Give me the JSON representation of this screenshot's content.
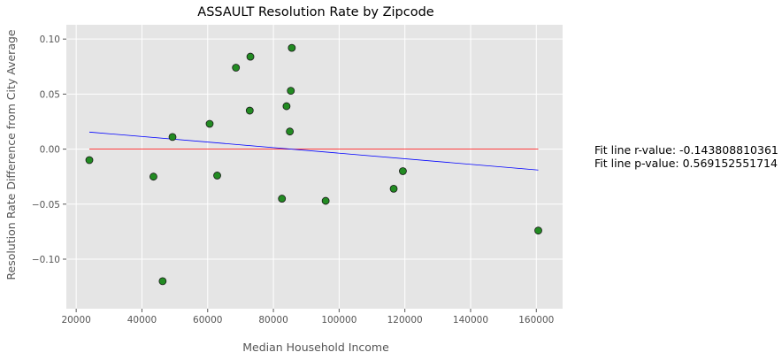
{
  "chart_data": {
    "type": "scatter",
    "title": "ASSAULT Resolution Rate by Zipcode",
    "xlabel": "Median Household Income",
    "ylabel": "Resolution Rate Difference from City Average",
    "xlim": [
      17000,
      168000
    ],
    "ylim": [
      -0.145,
      0.113
    ],
    "xticks": [
      20000,
      40000,
      60000,
      80000,
      100000,
      120000,
      140000,
      160000
    ],
    "yticks": [
      -0.1,
      -0.05,
      0.0,
      0.05,
      0.1
    ],
    "xtick_labels": [
      "20000",
      "40000",
      "60000",
      "80000",
      "100000",
      "120000",
      "140000",
      "160000"
    ],
    "ytick_labels": [
      "−0.10",
      "−0.05",
      "0.00",
      "0.05",
      "0.10"
    ],
    "grid": true,
    "points": [
      {
        "x": 24000,
        "y": -0.01
      },
      {
        "x": 43500,
        "y": -0.025
      },
      {
        "x": 46300,
        "y": -0.12
      },
      {
        "x": 49300,
        "y": 0.011
      },
      {
        "x": 60600,
        "y": 0.023
      },
      {
        "x": 62900,
        "y": -0.024
      },
      {
        "x": 68600,
        "y": 0.074
      },
      {
        "x": 72800,
        "y": 0.035
      },
      {
        "x": 73000,
        "y": 0.084
      },
      {
        "x": 82600,
        "y": -0.045
      },
      {
        "x": 84000,
        "y": 0.039
      },
      {
        "x": 85000,
        "y": 0.016
      },
      {
        "x": 85300,
        "y": 0.053
      },
      {
        "x": 85600,
        "y": 0.092
      },
      {
        "x": 95900,
        "y": -0.047
      },
      {
        "x": 116600,
        "y": -0.036
      },
      {
        "x": 119400,
        "y": -0.02
      },
      {
        "x": 160600,
        "y": -0.074
      }
    ],
    "fit_line": {
      "x": [
        24000,
        160600
      ],
      "y": [
        0.0155,
        -0.019
      ]
    },
    "zero_line": {
      "x": [
        24000,
        160600
      ],
      "y": [
        0.0,
        0.0
      ]
    },
    "colors": {
      "background": "#e5e5e5",
      "grid": "#ffffff",
      "point_fill": "#228b22",
      "point_edge": "#1a1a1a",
      "fit_line": "#0000ff",
      "zero_line": "#ff0000",
      "text": "#555555",
      "title": "#000000"
    }
  },
  "annotations": {
    "r_value": "Fit line r-value: -0.143808810361",
    "p_value": "Fit line p-value: 0.569152551714"
  }
}
